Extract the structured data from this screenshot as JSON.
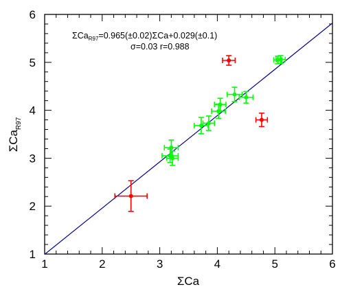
{
  "chart_data": {
    "type": "scatter",
    "title": "",
    "xlabel": "ΣCa",
    "ylabel_main": "ΣCa",
    "ylabel_sub": "R97",
    "xlim": [
      1,
      6
    ],
    "ylim": [
      1,
      6
    ],
    "xticks": [
      "1",
      "2",
      "3",
      "4",
      "5",
      "6"
    ],
    "yticks": [
      "1",
      "2",
      "3",
      "4",
      "5",
      "6"
    ],
    "grid": false,
    "fit_line": {
      "slope": 0.965,
      "intercept": 0.029,
      "color": "#00008b"
    },
    "annotation_line1": {
      "pre": "ΣCa",
      "sub": "R97",
      "post": "=0.965(±0.02)ΣCa+0.029(±0.1)"
    },
    "annotation_line2": "σ=0.03  r=0.988",
    "series": [
      {
        "color": "#00ff00",
        "points": [
          {
            "x": 3.18,
            "y": 3.05,
            "xerr": 0.14,
            "yerr": 0.14
          },
          {
            "x": 3.2,
            "y": 3.22,
            "xerr": 0.12,
            "yerr": 0.16
          },
          {
            "x": 3.22,
            "y": 3.0,
            "xerr": 0.1,
            "yerr": 0.15
          },
          {
            "x": 3.72,
            "y": 3.68,
            "xerr": 0.12,
            "yerr": 0.17
          },
          {
            "x": 3.85,
            "y": 3.73,
            "xerr": 0.1,
            "yerr": 0.15
          },
          {
            "x": 4.02,
            "y": 3.98,
            "xerr": 0.12,
            "yerr": 0.15
          },
          {
            "x": 4.05,
            "y": 4.12,
            "xerr": 0.1,
            "yerr": 0.13
          },
          {
            "x": 4.3,
            "y": 4.33,
            "xerr": 0.13,
            "yerr": 0.15
          },
          {
            "x": 4.5,
            "y": 4.27,
            "xerr": 0.12,
            "yerr": 0.12
          },
          {
            "x": 5.05,
            "y": 5.05,
            "xerr": 0.07,
            "yerr": 0.08
          },
          {
            "x": 5.1,
            "y": 5.06,
            "xerr": 0.08,
            "yerr": 0.08
          }
        ]
      },
      {
        "color": "#ff0000",
        "points": [
          {
            "x": 2.5,
            "y": 2.21,
            "xerr": 0.28,
            "yerr": 0.32
          },
          {
            "x": 4.2,
            "y": 5.04,
            "xerr": 0.11,
            "yerr": 0.1
          },
          {
            "x": 4.77,
            "y": 3.8,
            "xerr": 0.1,
            "yerr": 0.14
          }
        ]
      }
    ]
  }
}
